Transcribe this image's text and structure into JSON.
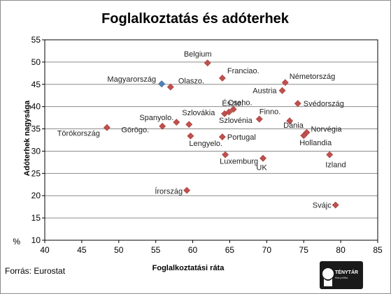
{
  "chart_data": {
    "type": "scatter",
    "title": "Foglalkoztatás és adóterhek",
    "xlabel": "Foglalkoztatási  ráta",
    "ylabel": "Adóterhek nagysága",
    "xlim": [
      40,
      85
    ],
    "ylim": [
      10,
      55
    ],
    "xticks": [
      "40",
      "45",
      "50",
      "55",
      "60",
      "65",
      "70",
      "75",
      "80",
      "85"
    ],
    "yticks": [
      "10",
      "15",
      "20",
      "25",
      "30",
      "35",
      "40",
      "45",
      "50",
      "55"
    ],
    "y_unit": "%",
    "grid": "horizontal",
    "legend": "none",
    "source": "Forrás: Eurostat",
    "logo_text": "TÉNYTÁR",
    "logo_subtext": "friss politika",
    "colors": {
      "points": "#c0504d",
      "highlight": "#4f81bd"
    },
    "points": [
      {
        "label": "Belgium",
        "x": 62.0,
        "y": 49.8
      },
      {
        "label": "Magyarország",
        "x": 55.8,
        "y": 45.1,
        "highlight": true
      },
      {
        "label": "Olaszo.",
        "x": 57.0,
        "y": 44.4
      },
      {
        "label": "Franciao.",
        "x": 64.0,
        "y": 46.4
      },
      {
        "label": "Németország",
        "x": 72.5,
        "y": 45.4
      },
      {
        "label": "Austria",
        "x": 72.1,
        "y": 43.6
      },
      {
        "label": "Svédország",
        "x": 74.2,
        "y": 40.7
      },
      {
        "label": "Cseho.",
        "x": 65.5,
        "y": 39.4
      },
      {
        "label": "Észto.",
        "x": 64.9,
        "y": 38.8
      },
      {
        "label": "Szlovénia",
        "x": 64.3,
        "y": 38.4
      },
      {
        "label": "Finno.",
        "x": 69.0,
        "y": 37.2
      },
      {
        "label": "Dánia",
        "x": 73.1,
        "y": 36.8
      },
      {
        "label": "Spanyolo.",
        "x": 57.8,
        "y": 36.5
      },
      {
        "label": "Szlovákia",
        "x": 59.5,
        "y": 36.0
      },
      {
        "label": "Görögo.",
        "x": 55.9,
        "y": 35.6
      },
      {
        "label": "Törökország",
        "x": 48.4,
        "y": 35.3
      },
      {
        "label": "Norvégia",
        "x": 75.4,
        "y": 34.2
      },
      {
        "label": "Hollandia",
        "x": 75.0,
        "y": 33.5
      },
      {
        "label": "Lengyelo.",
        "x": 59.7,
        "y": 33.4
      },
      {
        "label": "Portugal",
        "x": 64.0,
        "y": 33.2
      },
      {
        "label": "Luxemburg",
        "x": 64.4,
        "y": 29.2
      },
      {
        "label": "Izland",
        "x": 78.5,
        "y": 29.2
      },
      {
        "label": "UK",
        "x": 69.5,
        "y": 28.4
      },
      {
        "label": "Írország",
        "x": 59.2,
        "y": 21.2
      },
      {
        "label": "Svájc",
        "x": 79.3,
        "y": 17.9
      }
    ]
  }
}
